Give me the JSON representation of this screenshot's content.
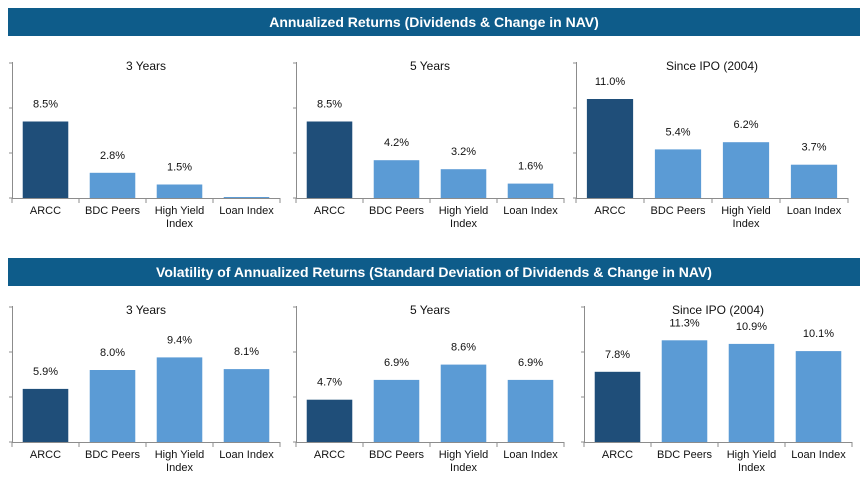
{
  "banners": {
    "returns": "Annualized Returns (Dividends & Change in NAV)",
    "volatility": "Volatility of Annualized Returns (Standard Deviation of Dividends & Change in NAV)"
  },
  "colors": {
    "primary": "#1f4e79",
    "secondary": "#5b9bd5",
    "banner": "#0e5c8a",
    "axis": "#8c8c8c"
  },
  "chart_data": [
    {
      "type": "bar",
      "group": "returns",
      "title": "3 Years",
      "categories": [
        "ARCC",
        "BDC Peers",
        "High Yield Index",
        "Loan Index"
      ],
      "category_lines": [
        [
          "ARCC"
        ],
        [
          "BDC Peers"
        ],
        [
          "High Yield",
          "Index"
        ],
        [
          "Loan Index"
        ]
      ],
      "values": [
        8.5,
        2.8,
        1.5,
        0.0
      ],
      "labels": [
        "8.5%",
        "2.8%",
        "1.5%",
        ""
      ],
      "ylim": [
        0,
        15
      ],
      "grid": false
    },
    {
      "type": "bar",
      "group": "returns",
      "title": "5 Years",
      "categories": [
        "ARCC",
        "BDC Peers",
        "High Yield Index",
        "Loan Index"
      ],
      "category_lines": [
        [
          "ARCC"
        ],
        [
          "BDC Peers"
        ],
        [
          "High Yield",
          "Index"
        ],
        [
          "Loan Index"
        ]
      ],
      "values": [
        8.5,
        4.2,
        3.2,
        1.6
      ],
      "labels": [
        "8.5%",
        "4.2%",
        "3.2%",
        "1.6%"
      ],
      "ylim": [
        0,
        15
      ],
      "grid": false
    },
    {
      "type": "bar",
      "group": "returns",
      "title": "Since IPO (2004)",
      "categories": [
        "ARCC",
        "BDC Peers",
        "High Yield Index",
        "Loan Index"
      ],
      "category_lines": [
        [
          "ARCC"
        ],
        [
          "BDC Peers"
        ],
        [
          "High Yield",
          "Index"
        ],
        [
          "Loan Index"
        ]
      ],
      "values": [
        11.0,
        5.4,
        6.2,
        3.7
      ],
      "labels": [
        "11.0%",
        "5.4%",
        "6.2%",
        "3.7%"
      ],
      "ylim": [
        0,
        15
      ],
      "grid": false
    },
    {
      "type": "bar",
      "group": "volatility",
      "title": "3 Years",
      "categories": [
        "ARCC",
        "BDC Peers",
        "High Yield Index",
        "Loan Index"
      ],
      "category_lines": [
        [
          "ARCC"
        ],
        [
          "BDC Peers"
        ],
        [
          "High Yield",
          "Index"
        ],
        [
          "Loan Index"
        ]
      ],
      "values": [
        5.9,
        8.0,
        9.4,
        8.1
      ],
      "labels": [
        "5.9%",
        "8.0%",
        "9.4%",
        "8.1%"
      ],
      "ylim": [
        0,
        15
      ],
      "grid": false
    },
    {
      "type": "bar",
      "group": "volatility",
      "title": "5 Years",
      "categories": [
        "ARCC",
        "BDC Peers",
        "High Yield Index",
        "Loan Index"
      ],
      "category_lines": [
        [
          "ARCC"
        ],
        [
          "BDC Peers"
        ],
        [
          "High Yield",
          "Index"
        ],
        [
          "Loan Index"
        ]
      ],
      "values": [
        4.7,
        6.9,
        8.6,
        6.9
      ],
      "labels": [
        "4.7%",
        "6.9%",
        "8.6%",
        "6.9%"
      ],
      "ylim": [
        0,
        15
      ],
      "grid": false
    },
    {
      "type": "bar",
      "group": "volatility",
      "title": "Since IPO (2004)",
      "categories": [
        "ARCC",
        "BDC Peers",
        "High Yield Index",
        "Loan Index"
      ],
      "category_lines": [
        [
          "ARCC"
        ],
        [
          "BDC Peers"
        ],
        [
          "High Yield",
          "Index"
        ],
        [
          "Loan Index"
        ]
      ],
      "values": [
        7.8,
        11.3,
        10.9,
        10.1
      ],
      "labels": [
        "7.8%",
        "11.3%",
        "10.9%",
        "10.1%"
      ],
      "ylim": [
        0,
        15
      ],
      "grid": false
    }
  ]
}
